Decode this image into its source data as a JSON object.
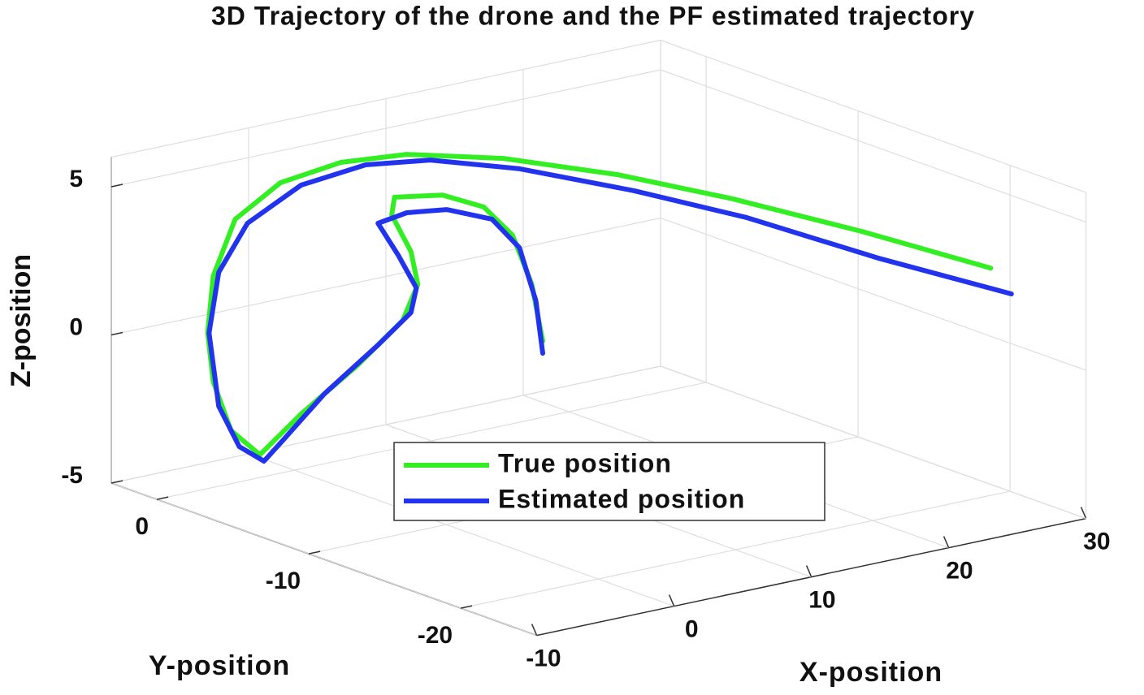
{
  "chart_data": {
    "type": "line3d",
    "title": "3D Trajectory of the drone and the PF estimated trajectory",
    "xlabel": "X-position",
    "ylabel": "Y-position",
    "zlabel": "Z-position",
    "xlim": [
      -10,
      30
    ],
    "ylim": [
      -25,
      3
    ],
    "zlim": [
      -5,
      6
    ],
    "xticks": [
      -10,
      0,
      10,
      20,
      30
    ],
    "yticks": [
      -20,
      -10,
      0
    ],
    "zticks": [
      -5,
      0,
      5
    ],
    "grid": true,
    "legend": "lower center",
    "series": [
      {
        "name": "True position",
        "color": "#33ee22",
        "x": [
          18.1,
          17.3,
          15.9,
          13.8,
          10.8,
          7.3,
          7.1,
          8.5,
          9.0,
          7.9,
          4.6,
          0.5,
          -2.5,
          -4.6,
          -5.9,
          -6.3,
          -5.9,
          -4.3,
          -1.0,
          3.4,
          8.2,
          10.8,
          14.7,
          18.6,
          23.6,
          28.6
        ],
        "y": [
          0,
          0,
          0,
          0,
          0,
          0,
          0,
          0,
          0,
          0,
          0,
          0,
          0,
          0,
          0,
          0,
          0,
          0,
          0,
          0,
          0,
          -4,
          -8,
          -12,
          -16,
          -20
        ],
        "z": [
          -2.43,
          -0.43,
          1.36,
          2.52,
          3.22,
          3.49,
          2.91,
          1.54,
          0.38,
          -0.73,
          -1.92,
          -3.15,
          -4.23,
          -3.21,
          -1.43,
          0.26,
          2.13,
          3.89,
          4.8,
          5.05,
          4.85,
          5.19,
          4.99,
          4.53,
          3.67,
          2.67
        ]
      },
      {
        "name": "Estimated position",
        "color": "#2233ee",
        "x": [
          18.1,
          17.6,
          16.4,
          14.4,
          11.1,
          8.2,
          6.1,
          7.6,
          8.9,
          8.5,
          6.1,
          2.2,
          -0.7,
          -2.2,
          -4.0,
          -5.5,
          -6.2,
          -5.5,
          -3.4,
          0.5,
          5.2,
          9.9,
          12.0,
          15.9,
          19.7,
          24.8,
          30.1
        ],
        "y": [
          0,
          0,
          0,
          0,
          0,
          0,
          0,
          0,
          0,
          0,
          0,
          0,
          0,
          0,
          0,
          0,
          0,
          0,
          0,
          0,
          0,
          0,
          -4,
          -8,
          -12,
          -16,
          -20
        ],
        "z": [
          -2.84,
          -1.01,
          0.89,
          2.05,
          2.7,
          2.88,
          2.73,
          1.49,
          0.27,
          -0.52,
          -1.38,
          -2.64,
          -3.86,
          -4.48,
          -3.81,
          -2.3,
          0.24,
          2.22,
          3.67,
          4.57,
          4.79,
          4.49,
          4.72,
          4.33,
          3.78,
          2.65,
          1.65
        ]
      }
    ]
  }
}
